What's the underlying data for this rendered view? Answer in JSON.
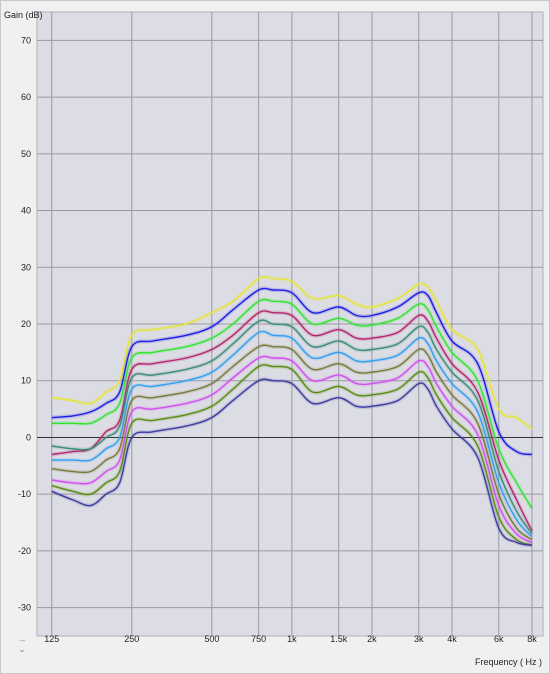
{
  "chart_data": {
    "type": "line",
    "xlabel": "Frequency ( Hz )",
    "ylabel": "Gain (dB)",
    "x_scale": "log",
    "xlim": [
      110,
      8800
    ],
    "ylim": [
      -35,
      75
    ],
    "x_ticks": [
      125,
      250,
      500,
      750,
      1000,
      1500,
      2000,
      3000,
      4000,
      6000,
      8000
    ],
    "x_tick_labels": [
      "125",
      "250",
      "500",
      "750",
      "1k",
      "1.5k",
      "2k",
      "3k",
      "4k",
      "6k",
      "8k"
    ],
    "y_ticks": [
      -30,
      -20,
      -10,
      0,
      10,
      20,
      30,
      40,
      50,
      60,
      70
    ],
    "y_tick_labels": [
      "-30",
      "-20",
      "-10",
      "0",
      "10",
      "20",
      "30",
      "40",
      "50",
      "60",
      "70"
    ],
    "grid": true,
    "zero_line": true,
    "x": [
      125,
      150,
      175,
      200,
      225,
      250,
      300,
      400,
      500,
      600,
      750,
      850,
      1000,
      1200,
      1500,
      1750,
      2000,
      2500,
      3000,
      3250,
      3500,
      4000,
      5000,
      6000,
      7000,
      8000
    ],
    "series": [
      {
        "color": "#e6e632",
        "values": [
          7,
          6.5,
          6,
          8,
          10,
          18,
          19,
          20,
          22,
          24,
          28,
          28,
          27.5,
          24.5,
          25,
          23.5,
          23,
          24.5,
          27,
          26.5,
          24,
          19,
          15.5,
          5,
          3.5,
          1.5
        ]
      },
      {
        "color": "#1e1ee6",
        "values": [
          3.5,
          3.8,
          4.5,
          6,
          8,
          16,
          17,
          18,
          19.5,
          22.5,
          26,
          26,
          25.5,
          22,
          23,
          21.5,
          21.5,
          23,
          25.5,
          25,
          22,
          17,
          13,
          1,
          -2.5,
          -3
        ]
      },
      {
        "color": "#30e630",
        "values": [
          2.5,
          2.5,
          2.5,
          4,
          6,
          14,
          15,
          16,
          17.5,
          20,
          24,
          24,
          23.5,
          20,
          21,
          19.8,
          19.8,
          21,
          23.5,
          22.5,
          19.5,
          15,
          10,
          -2,
          -8,
          -12.5
        ]
      },
      {
        "color": "#b4286e",
        "values": [
          -3,
          -2.5,
          -2,
          1,
          3,
          12,
          13,
          14,
          15.5,
          18,
          22,
          22,
          21.5,
          18,
          19,
          17.5,
          17.5,
          18.5,
          21.5,
          20.5,
          17.5,
          13,
          8,
          -4,
          -11,
          -16.5
        ]
      },
      {
        "color": "#3c8c78",
        "values": [
          -1.5,
          -2,
          -2,
          0,
          2,
          10.5,
          11,
          12,
          13.5,
          16.5,
          20.5,
          20,
          19.5,
          16,
          17,
          15.5,
          15.5,
          16.5,
          19.5,
          18.5,
          15.5,
          11.5,
          6.5,
          -6,
          -13,
          -17
        ]
      },
      {
        "color": "#32a0f0",
        "values": [
          -4,
          -4,
          -4,
          -2,
          0,
          8.5,
          9,
          10,
          11.5,
          14.5,
          18.5,
          18,
          17.5,
          14,
          15,
          13.5,
          13.5,
          14.5,
          17.5,
          16.5,
          13.5,
          9.5,
          4.5,
          -8,
          -14.5,
          -17.5
        ]
      },
      {
        "color": "#7a7a3c",
        "values": [
          -5.5,
          -6,
          -6,
          -4,
          -2,
          6.5,
          7,
          8,
          9.5,
          12.5,
          16,
          16,
          15.5,
          12,
          13,
          11.5,
          11.5,
          12.5,
          15.5,
          14.5,
          11.5,
          7.5,
          2.5,
          -10,
          -16,
          -18
        ]
      },
      {
        "color": "#d250f0",
        "values": [
          -7.5,
          -8,
          -8,
          -6,
          -4,
          4.5,
          5,
          6,
          7.5,
          10.5,
          14,
          14,
          13.5,
          10,
          11,
          9.5,
          9.5,
          10.5,
          13.5,
          12.5,
          9.5,
          5.5,
          0.5,
          -12,
          -17,
          -18.5
        ]
      },
      {
        "color": "#5a8c14",
        "values": [
          -8.5,
          -9.5,
          -10,
          -8,
          -6,
          2.5,
          3,
          4,
          5.5,
          8.5,
          12.5,
          12.5,
          12,
          8,
          9,
          7.5,
          7.5,
          8.5,
          11.5,
          10.5,
          7.5,
          3.5,
          -1.5,
          -14,
          -18,
          -19
        ]
      },
      {
        "color": "#3c3ca0",
        "values": [
          -9.5,
          -11,
          -12,
          -10,
          -8,
          0,
          1,
          2,
          3.5,
          6.5,
          10,
          10,
          9.5,
          6,
          7,
          5.5,
          5.5,
          6.5,
          9.5,
          8.5,
          5.5,
          1.5,
          -3.5,
          -16,
          -18.5,
          -19
        ]
      }
    ]
  }
}
